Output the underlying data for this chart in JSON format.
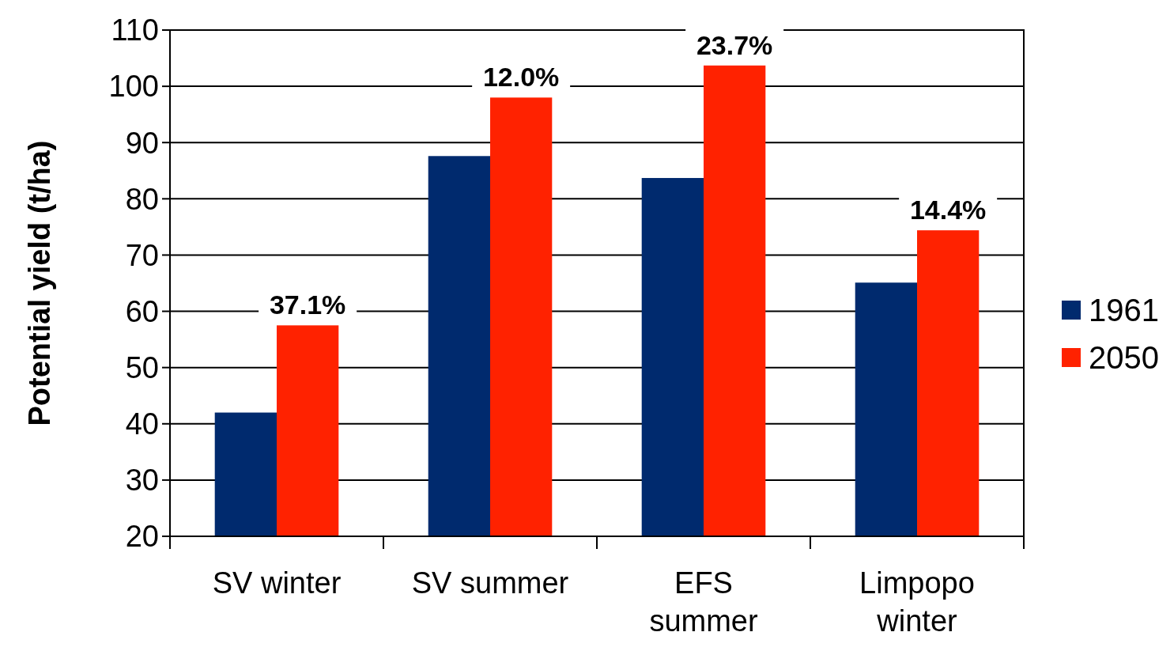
{
  "chart_data": {
    "type": "bar",
    "ylabel": "Potential yield (t/ha)",
    "categories": [
      "SV winter",
      "SV summer",
      "EFS summer",
      "Limpopo winter"
    ],
    "series": [
      {
        "name": "1961",
        "color": "#002a6e",
        "values": [
          42,
          87.6,
          83.7,
          65.1
        ]
      },
      {
        "name": "2050",
        "color": "#ff2200",
        "values": [
          57.5,
          98,
          103.7,
          74.4
        ]
      }
    ],
    "ylim": [
      20,
      110
    ],
    "yticks": [
      20,
      30,
      40,
      50,
      60,
      70,
      80,
      90,
      100,
      110
    ],
    "grid": "y",
    "legend": "right",
    "annotations": [
      {
        "text": "37.1%",
        "x": "SV winter",
        "y": 57.5
      },
      {
        "text": "12.0%",
        "x": "SV summer",
        "y": 98
      },
      {
        "text": "23.7%",
        "x": "EFS summer",
        "y": 103.7
      },
      {
        "text": "14.4%",
        "x": "Limpopo winter",
        "y": 74.4
      }
    ]
  }
}
